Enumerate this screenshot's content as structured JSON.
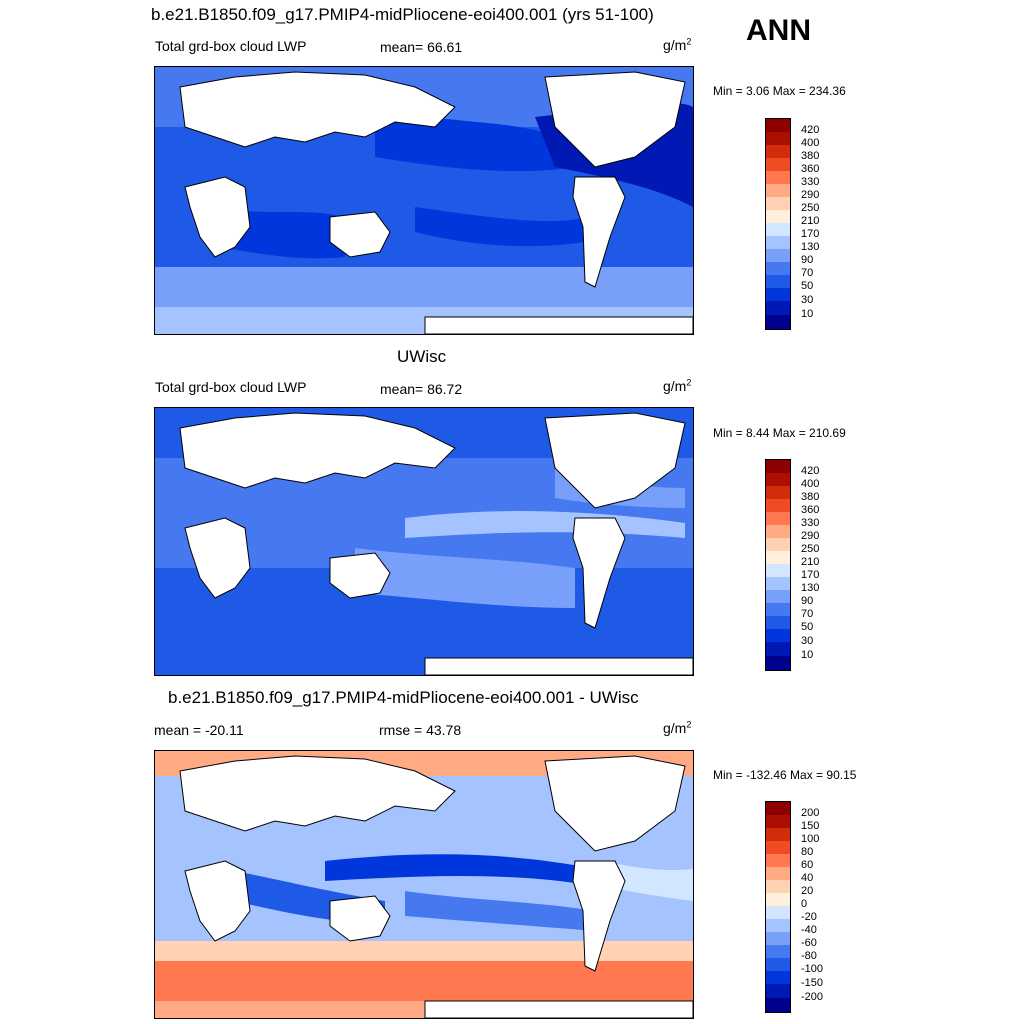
{
  "season": "ANN",
  "colors": {
    "levels14": [
      "#00008c",
      "#0019b4",
      "#0037dc",
      "#1e5ae6",
      "#4678f0",
      "#78a0fa",
      "#a5c3ff",
      "#d2e6ff",
      "#fff0dc",
      "#ffd2b4",
      "#ffaa82",
      "#ff7850",
      "#f04b23",
      "#d22d0a",
      "#aa0f00",
      "#8c0000"
    ],
    "land": "#ffffff",
    "coast": "#000000"
  },
  "panels": [
    {
      "title": "b.e21.B1850.f09_g17.PMIP4-midPliocene-eoi400.001 (yrs 51-100)",
      "left": "Total grd-box cloud LWP",
      "mid": "mean=  66.61",
      "units": "g/m",
      "units_sup": "2",
      "minmax": "Min =   3.06 Max = 234.36",
      "levels": [
        "420",
        "400",
        "380",
        "360",
        "330",
        "290",
        "250",
        "210",
        "170",
        "130",
        "90",
        "70",
        "50",
        "30",
        "10"
      ]
    },
    {
      "title": "UWisc",
      "left": "Total grd-box cloud LWP",
      "mid": "mean=  86.72",
      "units": "g/m",
      "units_sup": "2",
      "minmax": "Min =   8.44 Max = 210.69",
      "levels": [
        "420",
        "400",
        "380",
        "360",
        "330",
        "290",
        "250",
        "210",
        "170",
        "130",
        "90",
        "70",
        "50",
        "30",
        "10"
      ]
    },
    {
      "title": "b.e21.B1850.f09_g17.PMIP4-midPliocene-eoi400.001 - UWisc",
      "left": "mean = -20.11",
      "mid": "rmse =  43.78",
      "units": "g/m",
      "units_sup": "2",
      "minmax": "Min = -132.46 Max =  90.15",
      "levels": [
        "200",
        "150",
        "100",
        "80",
        "60",
        "40",
        "20",
        "0",
        "-20",
        "-40",
        "-60",
        "-80",
        "-100",
        "-150",
        "-200"
      ]
    }
  ]
}
